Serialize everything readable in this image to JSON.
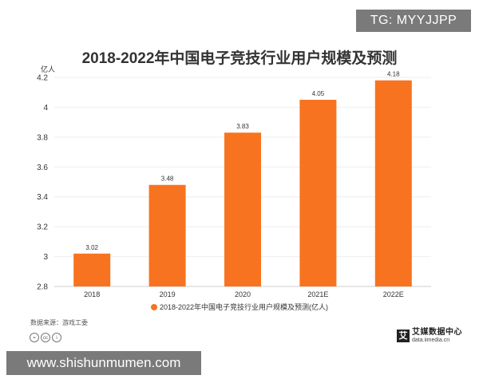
{
  "watermark_top": "TG: MYYJJPP",
  "watermark_bottom": "www.shishunmumen.com",
  "source_label": "数据来源：游戏工委",
  "brand": {
    "name": "艾媒数据中心",
    "url": "data.iimedia.cn",
    "mark": "艾"
  },
  "colors": {
    "bar": "#f8731f",
    "grid": "#eeeeee",
    "axis": "#cccccc",
    "text": "#333333"
  },
  "chart_data": {
    "type": "bar",
    "title": "2018-2022年中国电子竞技行业用户规模及预测",
    "ylabel": "亿人",
    "xlabel": "",
    "categories": [
      "2018",
      "2019",
      "2020",
      "2021E",
      "2022E"
    ],
    "series": [
      {
        "name": "2018-2022年中国电子竞技行业用户规模及预测(亿人)",
        "values": [
          3.02,
          3.48,
          3.83,
          4.05,
          4.18
        ]
      }
    ],
    "data_labels": [
      "3.02",
      "3.48",
      "3.83",
      "4.05",
      "4.18"
    ],
    "ylim": [
      2.8,
      4.2
    ],
    "yticks": [
      "2.8",
      "3",
      "3.2",
      "3.4",
      "3.6",
      "3.8",
      "4",
      "4.2"
    ],
    "grid": true,
    "legend_position": "bottom"
  }
}
